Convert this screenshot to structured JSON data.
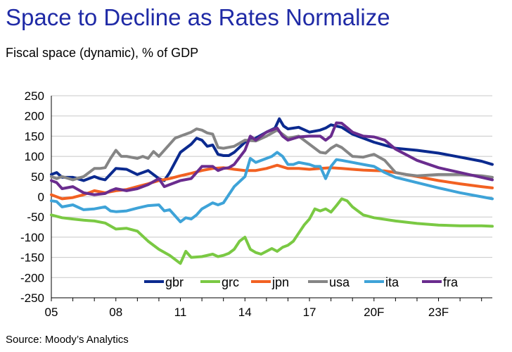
{
  "title": "Space to Decline as Rates Normalize",
  "subtitle": "Fiscal space (dynamic), % of GDP",
  "source": "Source: Moody’s Analytics",
  "chart_data": {
    "type": "line",
    "ylim": [
      -250,
      250
    ],
    "yticks": [
      250,
      200,
      150,
      100,
      50,
      0,
      -50,
      -100,
      -150,
      -200,
      -250
    ],
    "xlim": [
      2005,
      2025.5
    ],
    "xticks": [
      {
        "x": 2005,
        "label": "05"
      },
      {
        "x": 2008,
        "label": "08"
      },
      {
        "x": 2011,
        "label": "11"
      },
      {
        "x": 2014,
        "label": "14"
      },
      {
        "x": 2017,
        "label": "17"
      },
      {
        "x": 2020,
        "label": "20F"
      },
      {
        "x": 2023,
        "label": "23F"
      }
    ],
    "legend": "bottom",
    "grid": "horizontal",
    "series": [
      {
        "name": "gbr",
        "color": "#0b2a8f",
        "points": [
          [
            2005,
            55
          ],
          [
            2005.25,
            60
          ],
          [
            2005.5,
            48
          ],
          [
            2006,
            48
          ],
          [
            2006.5,
            40
          ],
          [
            2007,
            50
          ],
          [
            2007.25,
            45
          ],
          [
            2007.5,
            42
          ],
          [
            2008,
            70
          ],
          [
            2008.5,
            68
          ],
          [
            2009,
            55
          ],
          [
            2009.5,
            65
          ],
          [
            2010,
            45
          ],
          [
            2010.25,
            40
          ],
          [
            2010.5,
            60
          ],
          [
            2011,
            110
          ],
          [
            2011.5,
            130
          ],
          [
            2011.75,
            145
          ],
          [
            2012,
            140
          ],
          [
            2012.25,
            125
          ],
          [
            2012.5,
            128
          ],
          [
            2012.75,
            105
          ],
          [
            2013,
            102
          ],
          [
            2013.25,
            102
          ],
          [
            2013.5,
            110
          ],
          [
            2014,
            135
          ],
          [
            2014.5,
            145
          ],
          [
            2015,
            160
          ],
          [
            2015.4,
            170
          ],
          [
            2015.6,
            193
          ],
          [
            2015.8,
            175
          ],
          [
            2016,
            168
          ],
          [
            2016.5,
            172
          ],
          [
            2017,
            160
          ],
          [
            2017.5,
            165
          ],
          [
            2017.75,
            170
          ],
          [
            2018,
            178
          ],
          [
            2018.5,
            172
          ],
          [
            2019,
            155
          ],
          [
            2019.5,
            145
          ],
          [
            2020,
            135
          ],
          [
            2021,
            120
          ],
          [
            2022,
            115
          ],
          [
            2023,
            108
          ],
          [
            2024,
            98
          ],
          [
            2025,
            88
          ],
          [
            2025.5,
            80
          ]
        ]
      },
      {
        "name": "grc",
        "color": "#7ac943",
        "points": [
          [
            2005,
            -45
          ],
          [
            2005.5,
            -52
          ],
          [
            2006,
            -55
          ],
          [
            2006.5,
            -58
          ],
          [
            2007,
            -60
          ],
          [
            2007.5,
            -65
          ],
          [
            2008,
            -80
          ],
          [
            2008.5,
            -78
          ],
          [
            2009,
            -85
          ],
          [
            2009.5,
            -110
          ],
          [
            2010,
            -130
          ],
          [
            2010.5,
            -145
          ],
          [
            2011,
            -165
          ],
          [
            2011.25,
            -135
          ],
          [
            2011.5,
            -150
          ],
          [
            2012,
            -148
          ],
          [
            2012.5,
            -142
          ],
          [
            2012.75,
            -148
          ],
          [
            2013,
            -145
          ],
          [
            2013.25,
            -140
          ],
          [
            2013.5,
            -130
          ],
          [
            2013.75,
            -110
          ],
          [
            2014,
            -100
          ],
          [
            2014.25,
            -130
          ],
          [
            2014.5,
            -138
          ],
          [
            2014.75,
            -142
          ],
          [
            2015,
            -135
          ],
          [
            2015.25,
            -128
          ],
          [
            2015.5,
            -135
          ],
          [
            2015.75,
            -125
          ],
          [
            2016,
            -120
          ],
          [
            2016.25,
            -110
          ],
          [
            2016.5,
            -90
          ],
          [
            2016.75,
            -70
          ],
          [
            2017,
            -55
          ],
          [
            2017.25,
            -30
          ],
          [
            2017.5,
            -35
          ],
          [
            2017.75,
            -30
          ],
          [
            2018,
            -38
          ],
          [
            2018.25,
            -22
          ],
          [
            2018.5,
            -5
          ],
          [
            2018.75,
            -10
          ],
          [
            2019,
            -25
          ],
          [
            2019.5,
            -45
          ],
          [
            2020,
            -52
          ],
          [
            2021,
            -60
          ],
          [
            2022,
            -66
          ],
          [
            2023,
            -70
          ],
          [
            2024,
            -72
          ],
          [
            2025,
            -72
          ],
          [
            2025.5,
            -73
          ]
        ]
      },
      {
        "name": "jpn",
        "color": "#f26122",
        "points": [
          [
            2005,
            5
          ],
          [
            2005.25,
            0
          ],
          [
            2005.5,
            -5
          ],
          [
            2006,
            -2
          ],
          [
            2006.5,
            5
          ],
          [
            2007,
            15
          ],
          [
            2007.5,
            10
          ],
          [
            2008,
            15
          ],
          [
            2008.5,
            18
          ],
          [
            2009,
            25
          ],
          [
            2009.5,
            32
          ],
          [
            2010,
            40
          ],
          [
            2010.5,
            45
          ],
          [
            2011,
            52
          ],
          [
            2011.5,
            58
          ],
          [
            2012,
            65
          ],
          [
            2012.5,
            70
          ],
          [
            2013,
            72
          ],
          [
            2013.5,
            68
          ],
          [
            2014,
            65
          ],
          [
            2014.5,
            65
          ],
          [
            2015,
            70
          ],
          [
            2015.5,
            78
          ],
          [
            2016,
            70
          ],
          [
            2016.5,
            70
          ],
          [
            2017,
            68
          ],
          [
            2017.5,
            70
          ],
          [
            2018,
            72
          ],
          [
            2018.5,
            70
          ],
          [
            2019,
            68
          ],
          [
            2019.5,
            66
          ],
          [
            2020,
            65
          ],
          [
            2020.5,
            64
          ],
          [
            2021,
            60
          ],
          [
            2022,
            50
          ],
          [
            2023,
            40
          ],
          [
            2024,
            32
          ],
          [
            2025,
            25
          ],
          [
            2025.5,
            22
          ]
        ]
      },
      {
        "name": "usa",
        "color": "#858585",
        "points": [
          [
            2005,
            50
          ],
          [
            2005.25,
            45
          ],
          [
            2005.5,
            50
          ],
          [
            2006,
            42
          ],
          [
            2006.5,
            50
          ],
          [
            2007,
            70
          ],
          [
            2007.25,
            70
          ],
          [
            2007.5,
            72
          ],
          [
            2007.75,
            95
          ],
          [
            2008,
            115
          ],
          [
            2008.25,
            100
          ],
          [
            2008.5,
            100
          ],
          [
            2009,
            95
          ],
          [
            2009.25,
            100
          ],
          [
            2009.5,
            95
          ],
          [
            2009.75,
            112
          ],
          [
            2010,
            100
          ],
          [
            2010.5,
            130
          ],
          [
            2010.75,
            145
          ],
          [
            2011,
            150
          ],
          [
            2011.5,
            160
          ],
          [
            2011.75,
            168
          ],
          [
            2012,
            165
          ],
          [
            2012.25,
            158
          ],
          [
            2012.5,
            155
          ],
          [
            2012.75,
            122
          ],
          [
            2013,
            120
          ],
          [
            2013.5,
            125
          ],
          [
            2014,
            140
          ],
          [
            2014.5,
            138
          ],
          [
            2015,
            150
          ],
          [
            2015.5,
            165
          ],
          [
            2016,
            145
          ],
          [
            2016.5,
            150
          ],
          [
            2017,
            130
          ],
          [
            2017.5,
            110
          ],
          [
            2017.75,
            108
          ],
          [
            2018,
            120
          ],
          [
            2018.25,
            128
          ],
          [
            2018.5,
            122
          ],
          [
            2019,
            100
          ],
          [
            2019.5,
            98
          ],
          [
            2020,
            105
          ],
          [
            2020.5,
            90
          ],
          [
            2021,
            60
          ],
          [
            2021.5,
            55
          ],
          [
            2022,
            52
          ],
          [
            2023,
            55
          ],
          [
            2024,
            55
          ],
          [
            2025,
            52
          ],
          [
            2025.5,
            48
          ]
        ]
      },
      {
        "name": "ita",
        "color": "#3ea3d8",
        "points": [
          [
            2005,
            -10
          ],
          [
            2005.25,
            -12
          ],
          [
            2005.5,
            -25
          ],
          [
            2006,
            -20
          ],
          [
            2006.5,
            -32
          ],
          [
            2007,
            -30
          ],
          [
            2007.5,
            -25
          ],
          [
            2007.75,
            -35
          ],
          [
            2008,
            -37
          ],
          [
            2008.5,
            -35
          ],
          [
            2009,
            -28
          ],
          [
            2009.5,
            -22
          ],
          [
            2010,
            -20
          ],
          [
            2010.25,
            -35
          ],
          [
            2010.5,
            -32
          ],
          [
            2011,
            -62
          ],
          [
            2011.25,
            -52
          ],
          [
            2011.5,
            -55
          ],
          [
            2011.75,
            -45
          ],
          [
            2012,
            -30
          ],
          [
            2012.5,
            -15
          ],
          [
            2012.75,
            -20
          ],
          [
            2013,
            -15
          ],
          [
            2013.25,
            5
          ],
          [
            2013.5,
            25
          ],
          [
            2014,
            50
          ],
          [
            2014.25,
            95
          ],
          [
            2014.5,
            85
          ],
          [
            2015,
            95
          ],
          [
            2015.25,
            100
          ],
          [
            2015.5,
            110
          ],
          [
            2015.75,
            100
          ],
          [
            2016,
            80
          ],
          [
            2016.25,
            80
          ],
          [
            2016.5,
            85
          ],
          [
            2017,
            80
          ],
          [
            2017.25,
            75
          ],
          [
            2017.5,
            75
          ],
          [
            2017.75,
            45
          ],
          [
            2018,
            75
          ],
          [
            2018.25,
            92
          ],
          [
            2018.5,
            90
          ],
          [
            2019,
            85
          ],
          [
            2019.5,
            80
          ],
          [
            2020,
            75
          ],
          [
            2020.5,
            60
          ],
          [
            2021,
            48
          ],
          [
            2022,
            35
          ],
          [
            2023,
            22
          ],
          [
            2024,
            10
          ],
          [
            2025,
            0
          ],
          [
            2025.5,
            -5
          ]
        ]
      },
      {
        "name": "fra",
        "color": "#6a2c8e",
        "points": [
          [
            2005,
            40
          ],
          [
            2005.25,
            35
          ],
          [
            2005.5,
            20
          ],
          [
            2006,
            25
          ],
          [
            2006.5,
            10
          ],
          [
            2007,
            5
          ],
          [
            2007.5,
            8
          ],
          [
            2007.75,
            15
          ],
          [
            2008,
            20
          ],
          [
            2008.5,
            15
          ],
          [
            2009,
            20
          ],
          [
            2009.5,
            30
          ],
          [
            2010,
            45
          ],
          [
            2010.25,
            25
          ],
          [
            2010.5,
            30
          ],
          [
            2011,
            40
          ],
          [
            2011.5,
            45
          ],
          [
            2011.75,
            60
          ],
          [
            2012,
            75
          ],
          [
            2012.5,
            75
          ],
          [
            2012.75,
            65
          ],
          [
            2013,
            70
          ],
          [
            2013.25,
            72
          ],
          [
            2013.5,
            80
          ],
          [
            2014,
            115
          ],
          [
            2014.25,
            150
          ],
          [
            2014.5,
            140
          ],
          [
            2015,
            160
          ],
          [
            2015.25,
            165
          ],
          [
            2015.5,
            170
          ],
          [
            2015.75,
            150
          ],
          [
            2016,
            140
          ],
          [
            2016.5,
            148
          ],
          [
            2017,
            150
          ],
          [
            2017.5,
            150
          ],
          [
            2017.75,
            140
          ],
          [
            2018,
            150
          ],
          [
            2018.25,
            183
          ],
          [
            2018.5,
            182
          ],
          [
            2019,
            160
          ],
          [
            2019.5,
            150
          ],
          [
            2020,
            148
          ],
          [
            2020.5,
            140
          ],
          [
            2021,
            118
          ],
          [
            2022,
            90
          ],
          [
            2023,
            72
          ],
          [
            2024,
            60
          ],
          [
            2025,
            48
          ],
          [
            2025.5,
            42
          ]
        ]
      }
    ]
  }
}
